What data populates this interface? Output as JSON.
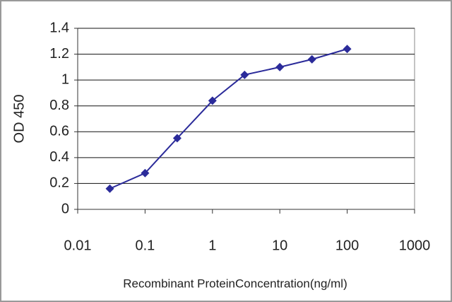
{
  "chart_data": {
    "type": "line",
    "x": [
      0.03,
      0.1,
      0.3,
      1,
      3,
      10,
      30,
      100
    ],
    "values": [
      0.16,
      0.28,
      0.55,
      0.84,
      1.04,
      1.1,
      1.16,
      1.24
    ],
    "color": "#2b2b9a",
    "xlabel": "Recombinant ProteinConcentration(ng/ml)",
    "ylabel": "OD 450",
    "xscale": "log",
    "xlim": [
      0.01,
      1000
    ],
    "xticks": [
      0.01,
      0.1,
      1,
      10,
      100,
      1000
    ],
    "ylim": [
      0,
      1.4
    ],
    "yticks": [
      0,
      0.2,
      0.4,
      0.6,
      0.8,
      1,
      1.2,
      1.4
    ],
    "grid": true
  }
}
